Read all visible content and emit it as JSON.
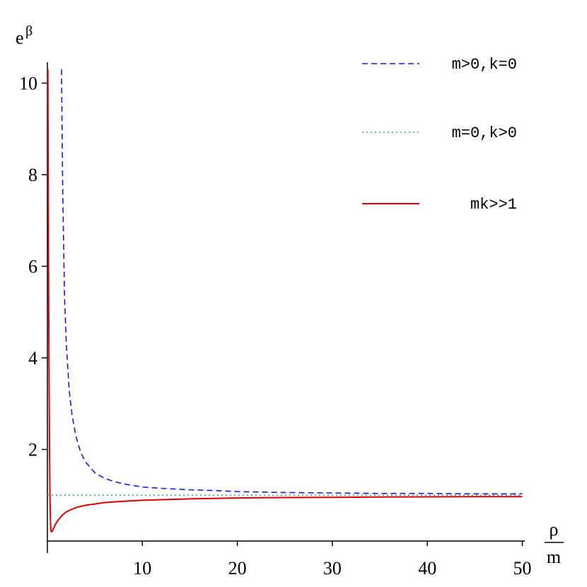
{
  "chart_data": {
    "type": "line",
    "title": "",
    "xlabel": "ρ/m",
    "xlabel_num": "ρ",
    "xlabel_den": "m",
    "ylabel_base": "e",
    "ylabel_sup": "β",
    "xlim": [
      0,
      51
    ],
    "ylim": [
      0,
      10.3
    ],
    "xticks": [
      10,
      20,
      30,
      40,
      50
    ],
    "yticks": [
      2,
      4,
      6,
      8,
      10
    ],
    "grid": false,
    "legend_position": "top-right",
    "series": [
      {
        "name": "m>0,k=0",
        "color": "#1a1adb",
        "style": "dashed",
        "x": [
          1.49,
          1.6,
          1.8,
          2.0,
          2.3,
          2.6,
          3.0,
          3.5,
          4.0,
          5.0,
          6.0,
          7.0,
          8.0,
          10.0,
          12.0,
          15.0,
          18.0,
          20.0,
          25.0,
          30.0,
          35.0,
          40.0,
          45.0,
          50.0
        ],
        "y": [
          10.3,
          7.84,
          5.35,
          4.27,
          3.28,
          2.75,
          2.29,
          1.94,
          1.73,
          1.49,
          1.37,
          1.3,
          1.25,
          1.18,
          1.15,
          1.12,
          1.1,
          1.08,
          1.06,
          1.05,
          1.04,
          1.04,
          1.03,
          1.03
        ]
      },
      {
        "name": "m=0,k>0",
        "color": "#2aa88a",
        "style": "dotted",
        "x": [
          0,
          50
        ],
        "y": [
          1.0,
          1.0
        ]
      },
      {
        "name": "mk>>1",
        "color": "#e00000",
        "style": "solid",
        "x": [
          0.05,
          0.08,
          0.12,
          0.17,
          0.22,
          0.27,
          0.32,
          0.36,
          0.4,
          0.5,
          0.7,
          1.0,
          1.5,
          2.0,
          3.0,
          4.0,
          5.0,
          6.0,
          8.0,
          10.0,
          15.0,
          20.0,
          25.0,
          30.0,
          35.0,
          40.0,
          45.0,
          50.0
        ],
        "y": [
          10.3,
          8.5,
          6.0,
          3.8,
          2.1,
          1.0,
          0.48,
          0.25,
          0.2,
          0.21,
          0.3,
          0.42,
          0.55,
          0.64,
          0.73,
          0.78,
          0.81,
          0.84,
          0.87,
          0.89,
          0.92,
          0.94,
          0.95,
          0.955,
          0.96,
          0.965,
          0.97,
          0.97
        ]
      }
    ]
  }
}
